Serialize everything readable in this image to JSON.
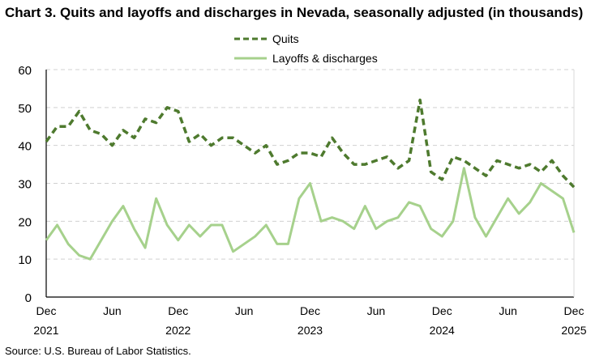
{
  "chart_data": {
    "type": "line",
    "title": "Chart 3. Quits and layoffs and discharges in Nevada, seasonally adjusted (in thousands)",
    "source": "Source: U.S. Bureau of Labor Statistics.",
    "ylim": [
      0,
      60
    ],
    "yticks": [
      0,
      10,
      20,
      30,
      40,
      50,
      60
    ],
    "grid": true,
    "legend": "top-center",
    "x_start": "Dec 2021",
    "x_end": "Dec 2025",
    "xtick_labels": [
      {
        "month": "Dec",
        "year": "2021",
        "index": 0
      },
      {
        "month": "Jun",
        "year": "",
        "index": 6
      },
      {
        "month": "Dec",
        "year": "2022",
        "index": 12
      },
      {
        "month": "Jun",
        "year": "",
        "index": 18
      },
      {
        "month": "Dec",
        "year": "2023",
        "index": 24
      },
      {
        "month": "Jun",
        "year": "",
        "index": 30
      },
      {
        "month": "Dec",
        "year": "2024",
        "index": 36
      },
      {
        "month": "Jun",
        "year": "",
        "index": 42
      },
      {
        "month": "Dec",
        "year": "2025",
        "index": 48
      }
    ],
    "series": [
      {
        "name": "Quits",
        "color": "#4e7a2e",
        "style": "dashed",
        "values": [
          41,
          45,
          45,
          49,
          44,
          43,
          40,
          44,
          42,
          47,
          46,
          50,
          49,
          41,
          43,
          40,
          42,
          42,
          40,
          38,
          40,
          35,
          36,
          38,
          38,
          37,
          42,
          38,
          35,
          35,
          36,
          37,
          34,
          36,
          52,
          33,
          31,
          37,
          36,
          34,
          32,
          36,
          35,
          34,
          35,
          33,
          36,
          32,
          29
        ]
      },
      {
        "name": "Layoffs & discharges",
        "color": "#a6d18c",
        "style": "solid",
        "values": [
          15,
          19,
          14,
          11,
          10,
          15,
          20,
          24,
          18,
          13,
          26,
          19,
          15,
          19,
          16,
          19,
          19,
          12,
          14,
          16,
          19,
          14,
          14,
          26,
          30,
          20,
          21,
          20,
          18,
          24,
          18,
          20,
          21,
          25,
          24,
          18,
          16,
          20,
          34,
          21,
          16,
          21,
          26,
          22,
          25,
          30,
          28,
          26,
          17
        ]
      }
    ]
  }
}
